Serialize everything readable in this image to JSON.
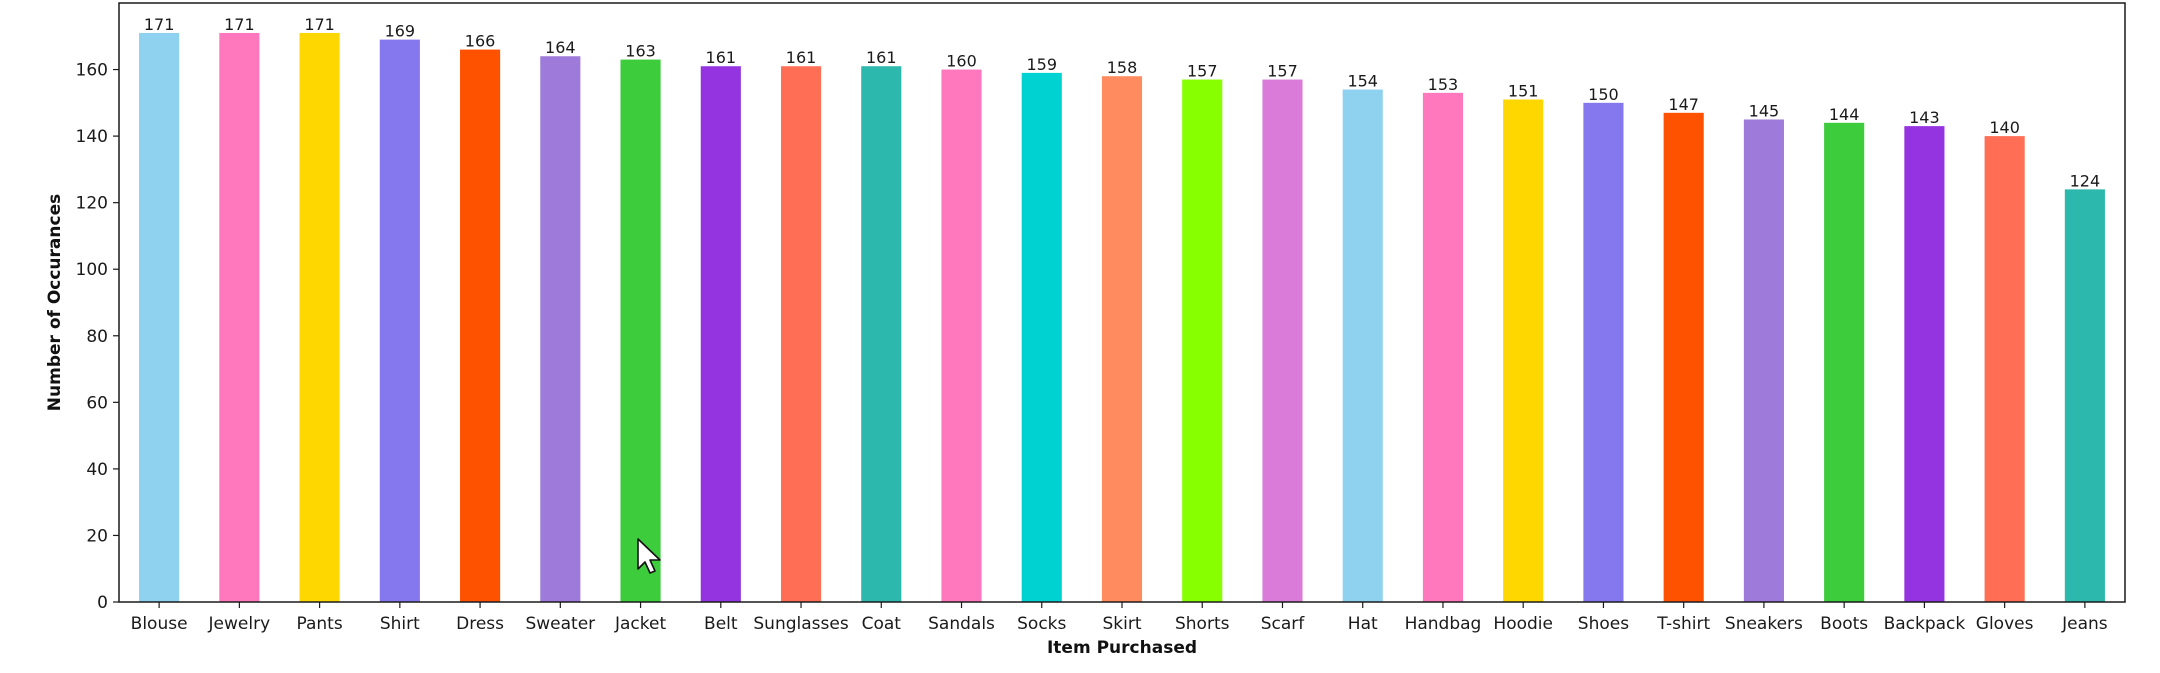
{
  "chart_data": {
    "type": "bar",
    "title": "",
    "xlabel": "Item Purchased",
    "ylabel": "Number of Occurances",
    "ylim": [
      0,
      180
    ],
    "yticks": [
      0,
      20,
      40,
      60,
      80,
      100,
      120,
      140,
      160
    ],
    "grid": false,
    "categories": [
      "Blouse",
      "Jewelry",
      "Pants",
      "Shirt",
      "Dress",
      "Sweater",
      "Jacket",
      "Belt",
      "Sunglasses",
      "Coat",
      "Sandals",
      "Socks",
      "Skirt",
      "Shorts",
      "Scarf",
      "Hat",
      "Handbag",
      "Hoodie",
      "Shoes",
      "T-shirt",
      "Sneakers",
      "Boots",
      "Backpack",
      "Gloves",
      "Jeans"
    ],
    "values": [
      171,
      171,
      171,
      169,
      166,
      164,
      163,
      161,
      161,
      161,
      160,
      159,
      158,
      157,
      157,
      154,
      153,
      151,
      150,
      147,
      145,
      144,
      143,
      140,
      124
    ],
    "colors": [
      "#8ED2F0",
      "#FF78BE",
      "#FFD700",
      "#8577EE",
      "#FF5200",
      "#9E7BDA",
      "#3CCC3C",
      "#9433E0",
      "#FF6E55",
      "#2DB8AE",
      "#FF78BE",
      "#00D2D2",
      "#FF8B5F",
      "#88FF00",
      "#DA7BDA",
      "#8ED2F0",
      "#FF78BE",
      "#FFD700",
      "#8577EE",
      "#FF5200",
      "#9E7BDA",
      "#3CCC3C",
      "#9433E0",
      "#FF6E55",
      "#2DB8AE"
    ]
  }
}
